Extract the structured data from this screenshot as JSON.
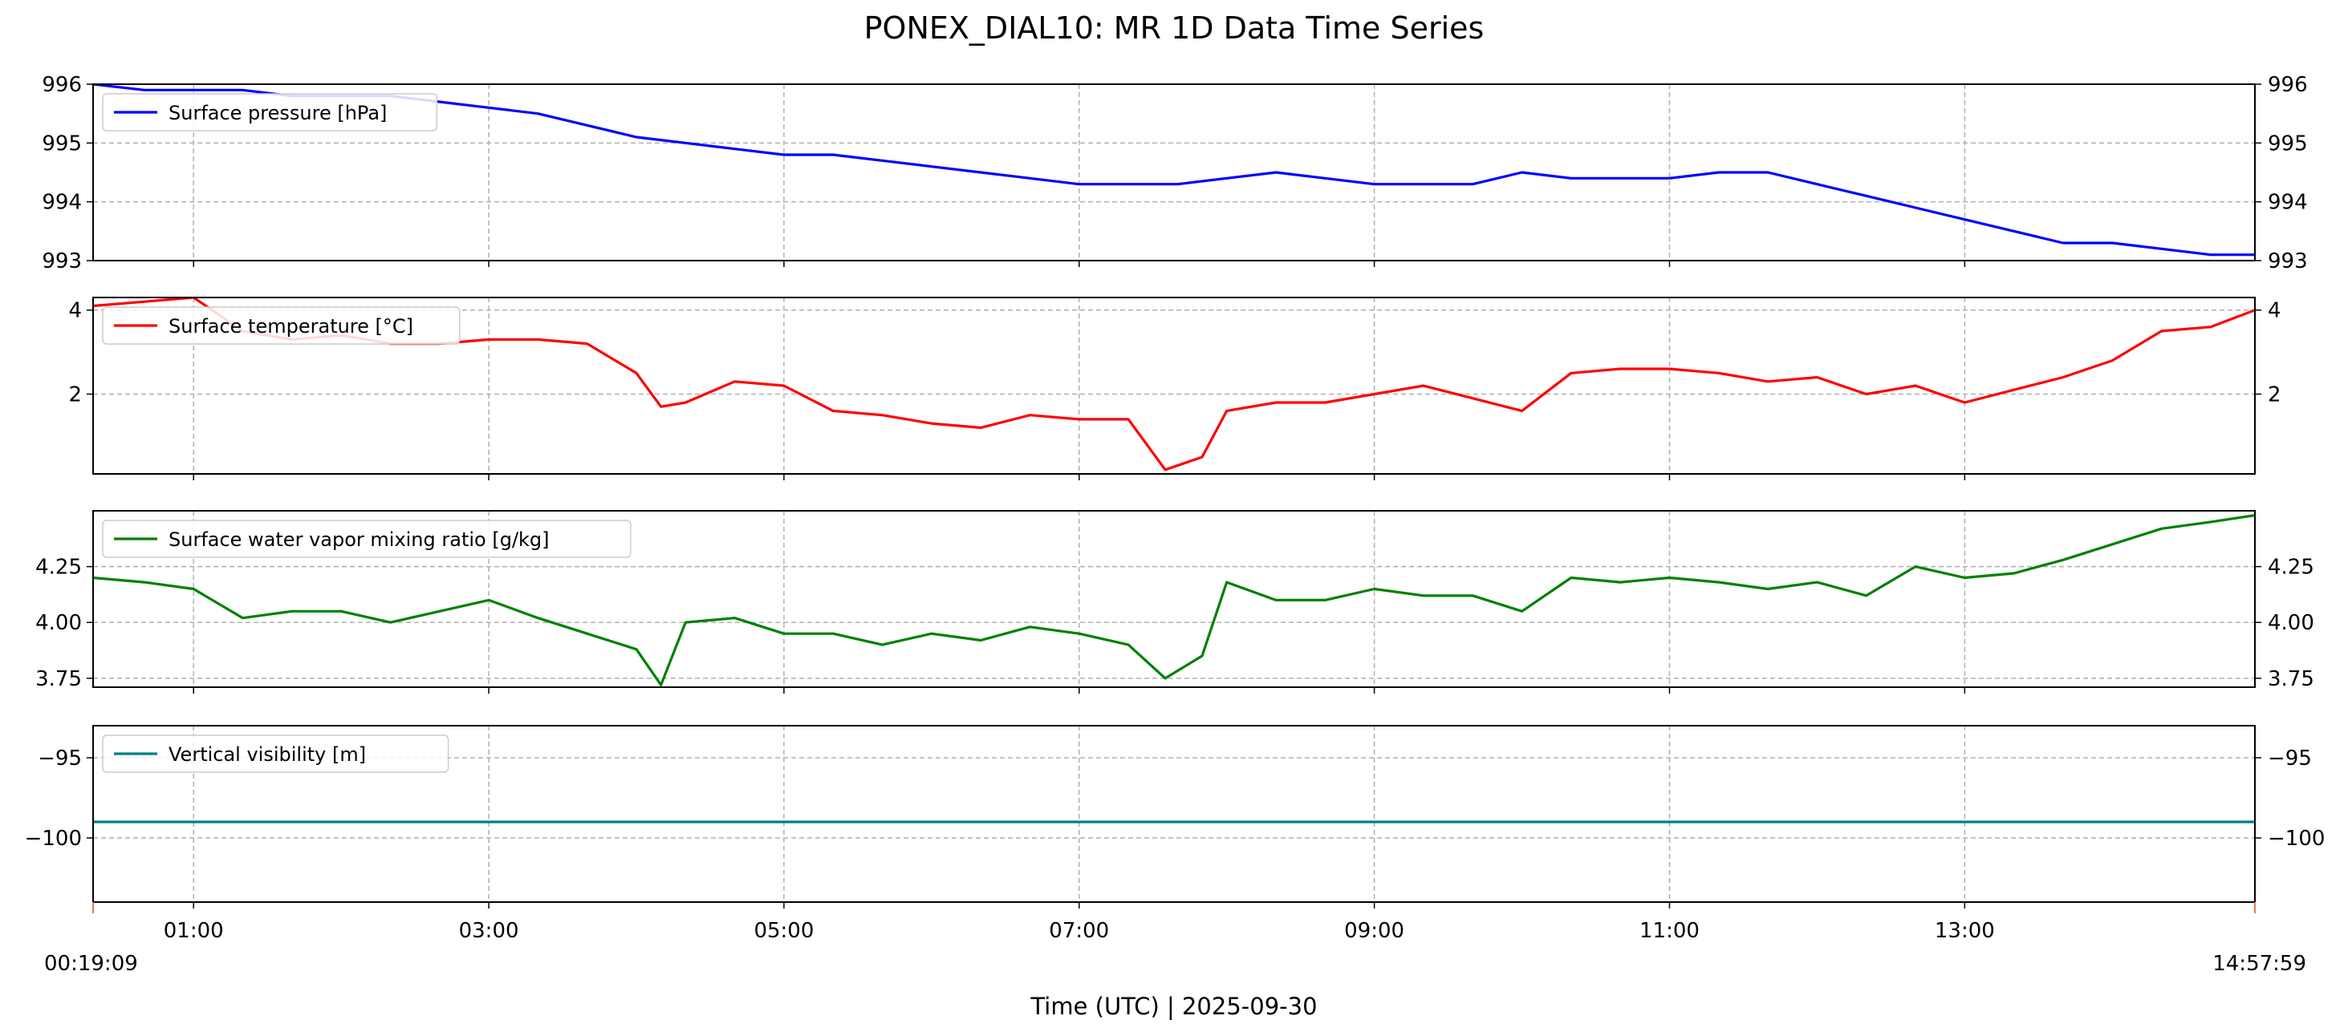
{
  "figure": {
    "title": "PONEX_DIAL10: MR 1D Data Time Series",
    "xlabel": "Time (UTC)  |  2025-09-30",
    "start_label": "00:19:09",
    "end_label": "14:57:59"
  },
  "chart_data": [
    {
      "type": "line",
      "series": [
        {
          "name": "Surface pressure [hPa]",
          "color": "#0000ff",
          "x": [
            "00:19",
            "00:40",
            "01:00",
            "01:20",
            "01:40",
            "02:00",
            "02:20",
            "02:40",
            "03:00",
            "03:20",
            "03:40",
            "04:00",
            "04:20",
            "04:40",
            "05:00",
            "05:20",
            "05:40",
            "06:00",
            "06:20",
            "06:40",
            "07:00",
            "07:20",
            "07:40",
            "08:00",
            "08:20",
            "08:40",
            "09:00",
            "09:20",
            "09:40",
            "10:00",
            "10:20",
            "10:40",
            "11:00",
            "11:20",
            "11:40",
            "12:00",
            "12:20",
            "12:40",
            "13:00",
            "13:20",
            "13:40",
            "14:00",
            "14:20",
            "14:40",
            "14:58"
          ],
          "y": [
            996.0,
            995.9,
            995.9,
            995.9,
            995.8,
            995.8,
            995.8,
            995.7,
            995.6,
            995.5,
            995.3,
            995.1,
            995.0,
            994.9,
            994.8,
            994.8,
            994.7,
            994.6,
            994.5,
            994.4,
            994.3,
            994.3,
            994.3,
            994.4,
            994.5,
            994.4,
            994.3,
            994.3,
            994.3,
            994.5,
            994.4,
            994.4,
            994.4,
            994.5,
            994.5,
            994.3,
            994.1,
            993.9,
            993.7,
            993.5,
            993.3,
            993.3,
            993.2,
            993.1,
            993.1
          ]
        }
      ],
      "ylim": [
        993,
        996
      ],
      "yticks": [
        "993",
        "994",
        "995",
        "996"
      ],
      "legend": "upper-left",
      "grid": true
    },
    {
      "type": "line",
      "series": [
        {
          "name": "Surface temperature [°C]",
          "color": "#ff0000",
          "x": [
            "00:19",
            "00:40",
            "01:00",
            "01:20",
            "01:40",
            "02:00",
            "02:20",
            "02:40",
            "03:00",
            "03:20",
            "03:40",
            "04:00",
            "04:10",
            "04:20",
            "04:40",
            "05:00",
            "05:20",
            "05:40",
            "06:00",
            "06:20",
            "06:40",
            "07:00",
            "07:20",
            "07:35",
            "07:50",
            "08:00",
            "08:20",
            "08:40",
            "09:00",
            "09:20",
            "09:40",
            "10:00",
            "10:20",
            "10:40",
            "11:00",
            "11:20",
            "11:40",
            "12:00",
            "12:20",
            "12:40",
            "13:00",
            "13:20",
            "13:40",
            "14:00",
            "14:20",
            "14:40",
            "14:58"
          ],
          "y": [
            4.1,
            4.2,
            4.3,
            3.5,
            3.3,
            3.4,
            3.2,
            3.2,
            3.3,
            3.3,
            3.2,
            2.5,
            1.7,
            1.8,
            2.3,
            2.2,
            1.6,
            1.5,
            1.3,
            1.2,
            1.5,
            1.4,
            1.4,
            0.2,
            0.5,
            1.6,
            1.8,
            1.8,
            2.0,
            2.2,
            1.9,
            1.6,
            2.5,
            2.6,
            2.6,
            2.5,
            2.3,
            2.4,
            2.0,
            2.2,
            1.8,
            2.1,
            2.4,
            2.8,
            3.5,
            3.6,
            4.0
          ]
        }
      ],
      "ylim": [
        0.1,
        4.3
      ],
      "yticks": [
        "2",
        "4"
      ],
      "legend": "upper-left",
      "grid": true
    },
    {
      "type": "line",
      "series": [
        {
          "name": "Surface water vapor mixing ratio [g/kg]",
          "color": "#008000",
          "x": [
            "00:19",
            "00:40",
            "01:00",
            "01:20",
            "01:40",
            "02:00",
            "02:20",
            "02:40",
            "03:00",
            "03:20",
            "03:40",
            "04:00",
            "04:10",
            "04:20",
            "04:40",
            "05:00",
            "05:20",
            "05:40",
            "06:00",
            "06:20",
            "06:40",
            "07:00",
            "07:20",
            "07:35",
            "07:50",
            "08:00",
            "08:20",
            "08:40",
            "09:00",
            "09:20",
            "09:40",
            "10:00",
            "10:20",
            "10:40",
            "11:00",
            "11:20",
            "11:40",
            "12:00",
            "12:20",
            "12:40",
            "13:00",
            "13:20",
            "13:40",
            "14:00",
            "14:20",
            "14:40",
            "14:58"
          ],
          "y": [
            4.2,
            4.18,
            4.15,
            4.02,
            4.05,
            4.05,
            4.0,
            4.05,
            4.1,
            4.02,
            3.95,
            3.88,
            3.72,
            4.0,
            4.02,
            3.95,
            3.95,
            3.9,
            3.95,
            3.92,
            3.98,
            3.95,
            3.9,
            3.75,
            3.85,
            4.18,
            4.1,
            4.1,
            4.15,
            4.12,
            4.12,
            4.05,
            4.2,
            4.18,
            4.2,
            4.18,
            4.15,
            4.18,
            4.12,
            4.25,
            4.2,
            4.22,
            4.28,
            4.35,
            4.42,
            4.45,
            4.48
          ]
        }
      ],
      "ylim": [
        3.71,
        4.5
      ],
      "yticks": [
        "3.75",
        "4.00",
        "4.25"
      ],
      "legend": "upper-left",
      "grid": true
    },
    {
      "type": "line",
      "series": [
        {
          "name": "Vertical visibility [m]",
          "color": "#008080",
          "x": [
            "00:19",
            "14:58"
          ],
          "y": [
            -99.0,
            -99.0
          ]
        }
      ],
      "ylim": [
        -104,
        -93
      ],
      "yticks": [
        "−100",
        "−95"
      ],
      "legend": "upper-left",
      "grid": true
    }
  ],
  "x_axis": {
    "type": "time",
    "range": [
      "00:19:09",
      "14:57:59"
    ],
    "ticks": [
      "01:00",
      "03:00",
      "05:00",
      "07:00",
      "09:00",
      "11:00",
      "13:00"
    ]
  }
}
